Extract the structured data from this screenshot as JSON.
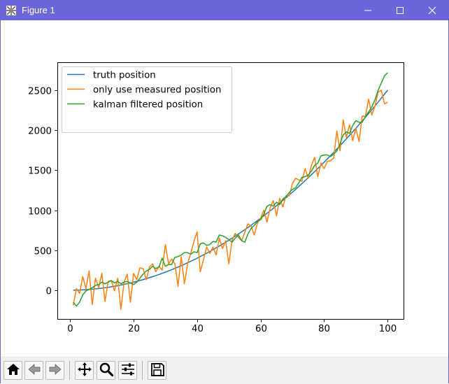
{
  "window": {
    "title": "Figure 1",
    "icons": {
      "app": "matplotlib-figure-icon",
      "minimize": "minimize-icon",
      "maximize": "maximize-icon",
      "close": "close-icon"
    },
    "titlebar_color": "#6b66d9"
  },
  "toolbar": {
    "buttons": [
      {
        "name": "home",
        "icon": "home-icon"
      },
      {
        "name": "back",
        "icon": "back-arrow-icon"
      },
      {
        "name": "forward",
        "icon": "forward-arrow-icon"
      },
      {
        "name": "pan",
        "icon": "pan-icon"
      },
      {
        "name": "zoom",
        "icon": "zoom-icon"
      },
      {
        "name": "configure-subplots",
        "icon": "subplots-icon"
      },
      {
        "name": "save",
        "icon": "save-icon"
      }
    ]
  },
  "chart_data": {
    "type": "line",
    "title": "",
    "xlabel": "",
    "ylabel": "",
    "xlim": [
      -4,
      105
    ],
    "ylim": [
      -360,
      2850
    ],
    "xticks": [
      0,
      20,
      40,
      60,
      80,
      100
    ],
    "yticks": [
      0,
      500,
      1000,
      1500,
      2000,
      2500
    ],
    "grid": false,
    "legend_position": "top-left",
    "x": [
      1,
      2,
      3,
      4,
      5,
      6,
      7,
      8,
      9,
      10,
      11,
      12,
      13,
      14,
      15,
      16,
      17,
      18,
      19,
      20,
      21,
      22,
      23,
      24,
      25,
      26,
      27,
      28,
      29,
      30,
      31,
      32,
      33,
      34,
      35,
      36,
      37,
      38,
      39,
      40,
      41,
      42,
      43,
      44,
      45,
      46,
      47,
      48,
      49,
      50,
      51,
      52,
      53,
      54,
      55,
      56,
      57,
      58,
      59,
      60,
      61,
      62,
      63,
      64,
      65,
      66,
      67,
      68,
      69,
      70,
      71,
      72,
      73,
      74,
      75,
      76,
      77,
      78,
      79,
      80,
      81,
      82,
      83,
      84,
      85,
      86,
      87,
      88,
      89,
      90,
      91,
      92,
      93,
      94,
      95,
      96,
      97,
      98,
      99,
      100
    ],
    "series": [
      {
        "name": "truth position",
        "color": "#1f77b4",
        "values": [
          0,
          1,
          2,
          4,
          6,
          9,
          12,
          16,
          20,
          25,
          30,
          36,
          42,
          49,
          56,
          64,
          72,
          81,
          90,
          100,
          110,
          121,
          132,
          144,
          156,
          169,
          182,
          196,
          210,
          225,
          240,
          256,
          272,
          289,
          306,
          324,
          342,
          361,
          380,
          400,
          420,
          441,
          462,
          484,
          506,
          529,
          552,
          576,
          600,
          625,
          650,
          676,
          702,
          729,
          756,
          784,
          812,
          841,
          870,
          900,
          930,
          961,
          992,
          1024,
          1056,
          1089,
          1122,
          1156,
          1190,
          1225,
          1260,
          1296,
          1332,
          1369,
          1406,
          1444,
          1482,
          1521,
          1560,
          1600,
          1640,
          1681,
          1722,
          1764,
          1806,
          1849,
          1892,
          1936,
          1980,
          2025,
          2070,
          2116,
          2162,
          2209,
          2256,
          2304,
          2352,
          2401,
          2450,
          2500
        ]
      },
      {
        "name": "only use measured position",
        "color": "#ff7f0e",
        "values": [
          -190,
          20,
          -40,
          170,
          20,
          240,
          -180,
          150,
          30,
          210,
          -140,
          110,
          120,
          -10,
          150,
          -240,
          100,
          200,
          -150,
          210,
          130,
          280,
          270,
          130,
          290,
          330,
          230,
          300,
          250,
          570,
          330,
          390,
          330,
          50,
          420,
          80,
          330,
          460,
          610,
          730,
          230,
          380,
          540,
          460,
          540,
          440,
          650,
          520,
          620,
          330,
          620,
          710,
          660,
          620,
          720,
          830,
          800,
          690,
          840,
          900,
          1000,
          850,
          1030,
          1120,
          930,
          1150,
          1040,
          1180,
          1180,
          1330,
          1400,
          1380,
          1360,
          1520,
          1400,
          1560,
          1660,
          1420,
          1590,
          1520,
          1610,
          1620,
          1650,
          1990,
          1740,
          2130,
          1910,
          2070,
          1870,
          2020,
          1860,
          2180,
          2170,
          2390,
          2190,
          2300,
          2480,
          2500,
          2330,
          2350
        ]
      },
      {
        "name": "kalman filtered position",
        "color": "#2ca02c",
        "values": [
          -150,
          -200,
          -150,
          -60,
          -10,
          10,
          30,
          60,
          70,
          100,
          80,
          100,
          120,
          90,
          110,
          80,
          100,
          110,
          90,
          70,
          100,
          150,
          200,
          240,
          260,
          300,
          270,
          290,
          400,
          300,
          320,
          320,
          410,
          420,
          440,
          470,
          470,
          450,
          480,
          470,
          580,
          590,
          560,
          570,
          610,
          600,
          690,
          680,
          660,
          630,
          600,
          650,
          690,
          620,
          600,
          700,
          770,
          810,
          860,
          880,
          950,
          1050,
          1070,
          1050,
          1100,
          1070,
          1140,
          1170,
          1220,
          1260,
          1280,
          1340,
          1410,
          1420,
          1440,
          1490,
          1560,
          1590,
          1680,
          1690,
          1690,
          1670,
          1700,
          1740,
          1830,
          1940,
          1980,
          1960,
          2060,
          2120,
          2100,
          2100,
          2170,
          2230,
          2290,
          2380,
          2500,
          2590,
          2680,
          2720
        ]
      }
    ]
  }
}
